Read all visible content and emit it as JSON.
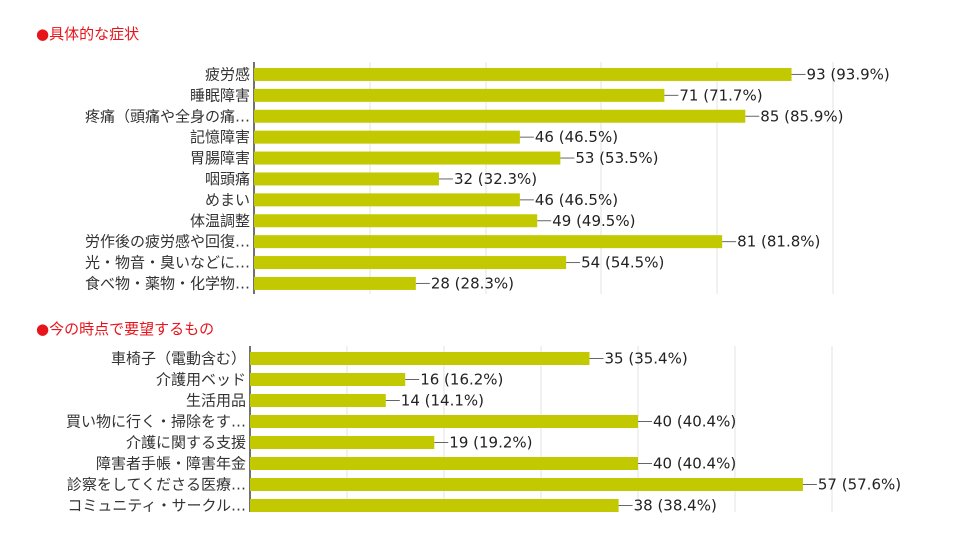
{
  "sections": [
    {
      "title": "●具体的な症状"
    },
    {
      "title": "●今の時点で要望するもの"
    }
  ],
  "colors": {
    "bar": "#c3c900",
    "title": "#e8141b",
    "grid": "#e3e3e3",
    "axis": "#444444",
    "leader": "#666666"
  },
  "chart_data": [
    {
      "type": "bar",
      "orientation": "horizontal",
      "title": "●具体的な症状",
      "categories": [
        "疲労感",
        "睡眠障害",
        "疼痛（頭痛や全身の痛…",
        "記憶障害",
        "胃腸障害",
        "咽頭痛",
        "めまい",
        "体温調整",
        "労作後の疲労感や回復…",
        "光・物音・臭いなどに…",
        "食べ物・薬物・化学物…"
      ],
      "values": [
        93,
        71,
        85,
        46,
        53,
        32,
        46,
        49,
        81,
        54,
        28
      ],
      "value_labels": [
        "93 (93.9%)",
        "71 (71.7%)",
        "85 (85.9%)",
        "46 (46.5%)",
        "53 (53.5%)",
        "32 (32.3%)",
        "46 (46.5%)",
        "49 (49.5%)",
        "81 (81.8%)",
        "54 (54.5%)",
        "28 (28.3%)"
      ],
      "xlim": [
        0,
        100
      ],
      "grid": true
    },
    {
      "type": "bar",
      "orientation": "horizontal",
      "title": "●今の時点で要望するもの",
      "categories": [
        "車椅子（電動含む）",
        "介護用ベッド",
        "生活用品",
        "買い物に行く・掃除をす…",
        "介護に関する支援",
        "障害者手帳・障害年金",
        "診察をしてくださる医療…",
        "コミュニティ・サークル…"
      ],
      "values": [
        35,
        16,
        14,
        40,
        19,
        40,
        57,
        38
      ],
      "value_labels": [
        "35 (35.4%)",
        "16 (16.2%)",
        "14 (14.1%)",
        "40 (40.4%)",
        "19 (19.2%)",
        "40 (40.4%)",
        "57 (57.6%)",
        "38 (38.4%)"
      ],
      "xlim": [
        0,
        100
      ],
      "grid": true
    }
  ]
}
